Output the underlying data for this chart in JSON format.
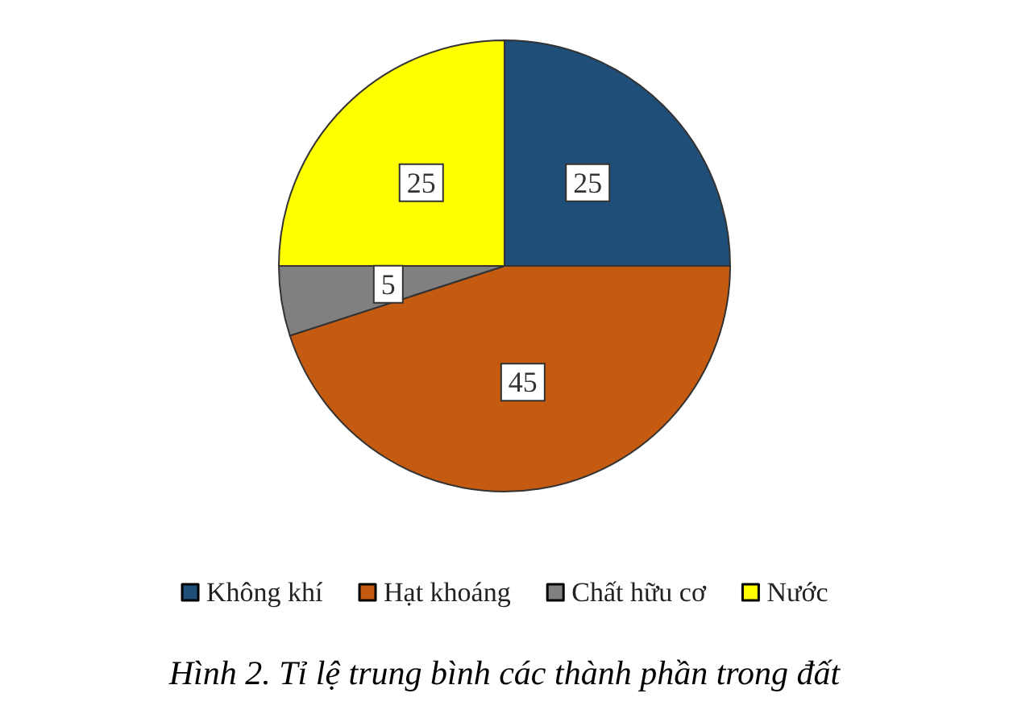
{
  "chart_data": {
    "type": "pie",
    "title": "Hình 2. Tỉ lệ trung bình các thành phần trong đất",
    "categories": [
      "Không khí",
      "Hạt khoáng",
      "Chất hữu cơ",
      "Nước"
    ],
    "values": [
      25,
      45,
      5,
      25
    ],
    "colors": [
      "#1f4e79",
      "#c55a11",
      "#808080",
      "#ffff00"
    ],
    "data_labels": true,
    "legend": "bottom"
  }
}
